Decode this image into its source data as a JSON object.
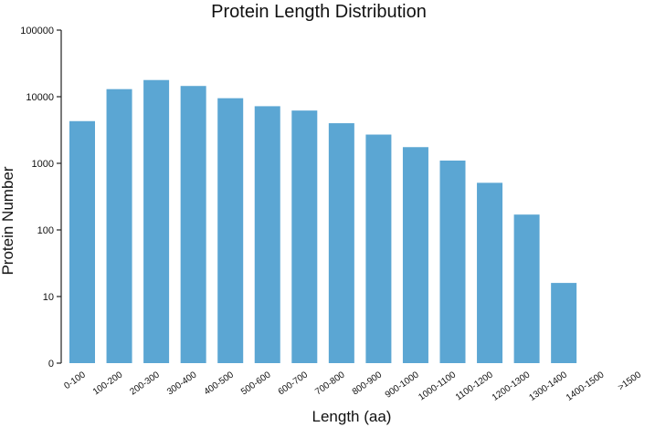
{
  "chart_data": {
    "type": "bar",
    "title": "Protein Length Distribution",
    "xlabel": "Length (aa)",
    "ylabel": "Protein Number",
    "yscale": "log",
    "ylim": [
      1,
      100000
    ],
    "yticks": [
      {
        "value": 1,
        "label": "0"
      },
      {
        "value": 10,
        "label": "10"
      },
      {
        "value": 100,
        "label": "100"
      },
      {
        "value": 1000,
        "label": "1000"
      },
      {
        "value": 10000,
        "label": "10000"
      },
      {
        "value": 100000,
        "label": "100000"
      }
    ],
    "categories": [
      "0-100",
      "100-200",
      "200-300",
      "300-400",
      "400-500",
      "500-600",
      "600-700",
      "700-800",
      "800-900",
      "900-1000",
      "1000-1100",
      "1100-1200",
      "1200-1300",
      "1300-1400",
      "1400-1500",
      ">1500"
    ],
    "values": [
      4300,
      13000,
      17800,
      14500,
      9500,
      7200,
      6200,
      4000,
      2700,
      1750,
      1100,
      510,
      170,
      16,
      0,
      0
    ],
    "bar_color": "#5ba6d3",
    "grid": false
  }
}
